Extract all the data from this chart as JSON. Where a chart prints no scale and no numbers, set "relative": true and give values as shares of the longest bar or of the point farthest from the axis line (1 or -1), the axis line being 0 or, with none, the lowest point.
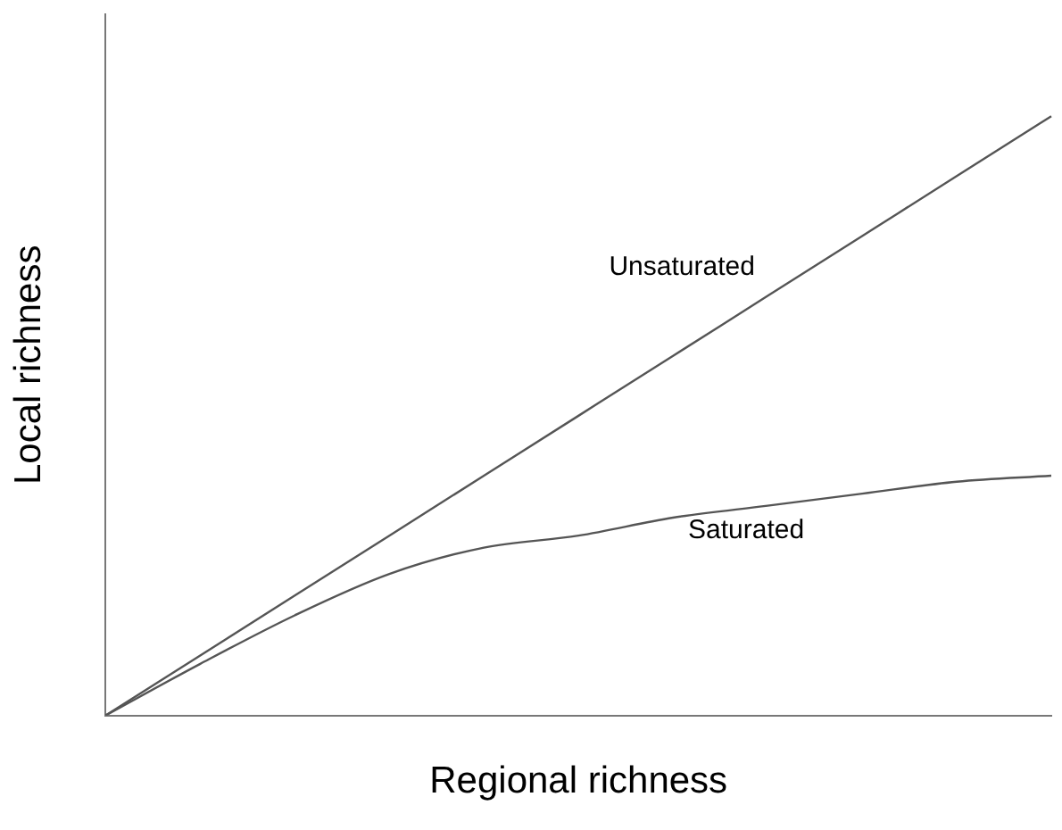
{
  "chart_data": {
    "type": "line",
    "relative": true,
    "xlabel": "Regional richness",
    "ylabel": "Local richness",
    "legend": false,
    "categories": [
      null,
      null,
      null,
      null,
      null,
      null,
      null,
      null,
      null,
      null,
      null
    ],
    "series": [
      {
        "name": "Unsaturated",
        "color": "#555555",
        "values": [
          0,
          0.1,
          0.2,
          0.3,
          0.4,
          0.5,
          0.6,
          0.7,
          0.8,
          0.9,
          1
        ]
      },
      {
        "name": "Saturated",
        "color": "#555555",
        "values": [
          0,
          0.086,
          0.167,
          0.236,
          0.28,
          0.3,
          0.33,
          0.35,
          0.37,
          0.39,
          0.4
        ]
      }
    ]
  }
}
